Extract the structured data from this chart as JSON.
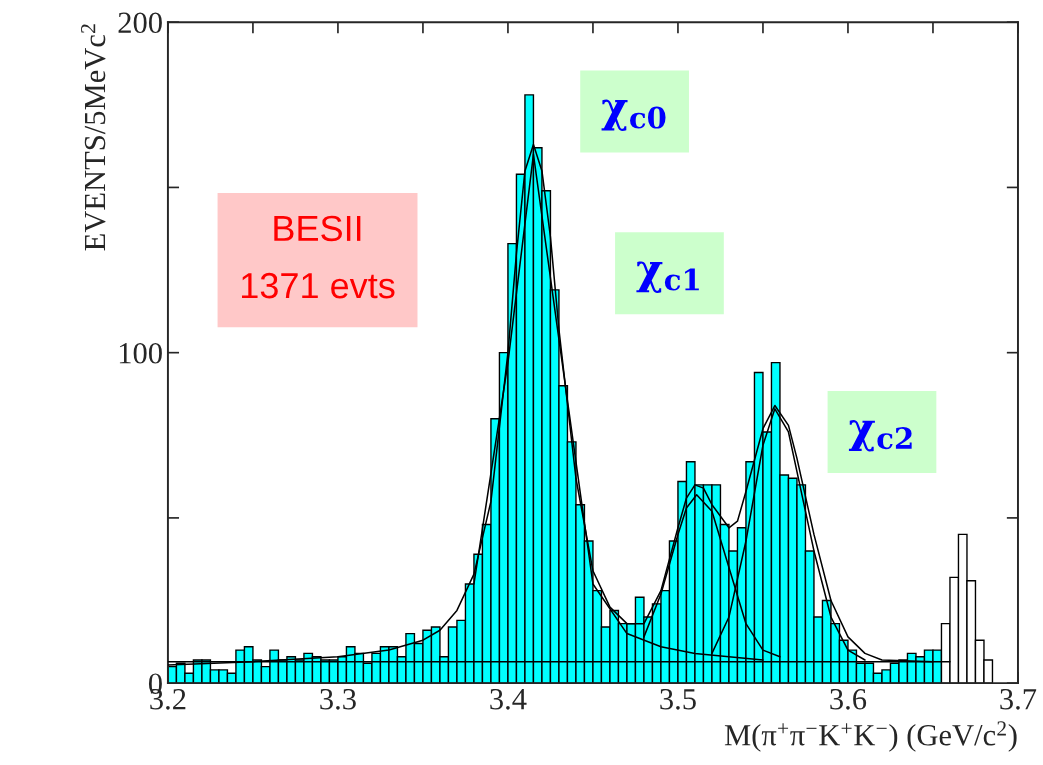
{
  "chart_data": {
    "type": "histogram",
    "xlabel": "M(π$^{+}$π$^{−}$K$^{+}$K$^{−}$) (GeV/c$^{2}$)",
    "ylabel": "EVENTS/5MeVc$^{2}$",
    "xlim": [
      3.2,
      3.7
    ],
    "ylim": [
      0,
      200
    ],
    "xticks": [
      3.2,
      {
        "value": 3.25,
        "label": null
      },
      3.3,
      {
        "value": 3.35,
        "label": null
      },
      3.4,
      {
        "value": 3.45,
        "label": null
      },
      3.5,
      {
        "value": 3.55,
        "label": null
      },
      3.6,
      {
        "value": 3.65,
        "label": null
      },
      3.7
    ],
    "yticks": [
      0,
      {
        "value": 50,
        "label": null
      },
      100,
      {
        "value": 150,
        "label": null
      },
      200
    ],
    "grid": false,
    "annotations": [
      "BESII\n1371 evts",
      "χ$_{c0}$",
      "χ$_{c1}$",
      "χ$_{c2}$"
    ],
    "series": [
      {
        "type": "histogram",
        "bins": [
          3.2,
          3.205,
          3.21,
          3.215,
          3.22,
          3.225,
          3.23,
          3.235,
          3.24,
          3.245,
          3.25,
          3.255,
          3.26,
          3.265,
          3.27,
          3.275,
          3.28,
          3.285,
          3.29,
          3.295,
          3.3,
          3.305,
          3.31,
          3.315,
          3.32,
          3.325,
          3.33,
          3.335,
          3.34,
          3.345,
          3.35,
          3.355,
          3.36,
          3.365,
          3.37,
          3.375,
          3.38,
          3.385,
          3.39,
          3.395,
          3.4,
          3.405,
          3.41,
          3.415,
          3.42,
          3.425,
          3.43,
          3.435,
          3.44,
          3.445,
          3.45,
          3.455,
          3.46,
          3.465,
          3.47,
          3.475,
          3.48,
          3.485,
          3.49,
          3.495,
          3.5,
          3.505,
          3.51,
          3.515,
          3.52,
          3.525,
          3.53,
          3.535,
          3.54,
          3.545,
          3.55,
          3.555,
          3.56,
          3.565,
          3.57,
          3.575,
          3.58,
          3.585,
          3.59,
          3.595,
          3.6,
          3.605,
          3.61,
          3.615,
          3.62,
          3.625,
          3.63,
          3.635,
          3.64,
          3.645,
          3.65,
          3.655,
          3.66,
          3.665,
          3.67,
          3.675,
          3.68,
          3.685,
          3.69,
          3.695,
          3.7
        ],
        "values": [
          5,
          6,
          3,
          7,
          7,
          4,
          4,
          3,
          10,
          11,
          7,
          5,
          10,
          7,
          8,
          7,
          9,
          8,
          7,
          7,
          8,
          11,
          9,
          6,
          9,
          11,
          11,
          8,
          15,
          12,
          16,
          17,
          8,
          17,
          19,
          30,
          39,
          48,
          80,
          100,
          133,
          154,
          178,
          162,
          149,
          119,
          90,
          73,
          54,
          43,
          28,
          17,
          22,
          18,
          18,
          26,
          20,
          24,
          28,
          43,
          61,
          67,
          60,
          60,
          60,
          48,
          40,
          47,
          67,
          94,
          76,
          97,
          63,
          62,
          60,
          40,
          20,
          25,
          18,
          13,
          10,
          6,
          6,
          3,
          4,
          6,
          7,
          9,
          8,
          10,
          10,
          18,
          32,
          45,
          31,
          13,
          7,
          0,
          0,
          0
        ],
        "colors": [
          "#00ffff",
          "#00ffff",
          "#00ffff",
          "#00ffff",
          "#00ffff",
          "#00ffff",
          "#00ffff",
          "#00ffff",
          "#00ffff",
          "#00ffff",
          "#00ffff",
          "#00ffff",
          "#00ffff",
          "#00ffff",
          "#00ffff",
          "#00ffff",
          "#00ffff",
          "#00ffff",
          "#00ffff",
          "#00ffff",
          "#00ffff",
          "#00ffff",
          "#00ffff",
          "#00ffff",
          "#00ffff",
          "#00ffff",
          "#00ffff",
          "#00ffff",
          "#00ffff",
          "#00ffff",
          "#00ffff",
          "#00ffff",
          "#00ffff",
          "#00ffff",
          "#00ffff",
          "#00ffff",
          "#00ffff",
          "#00ffff",
          "#00ffff",
          "#00ffff",
          "#00ffff",
          "#00ffff",
          "#00ffff",
          "#00ffff",
          "#00ffff",
          "#00ffff",
          "#00ffff",
          "#00ffff",
          "#00ffff",
          "#00ffff",
          "#00ffff",
          "#00ffff",
          "#00ffff",
          "#00ffff",
          "#00ffff",
          "#00ffff",
          "#00ffff",
          "#00ffff",
          "#00ffff",
          "#00ffff",
          "#00ffff",
          "#00ffff",
          "#00ffff",
          "#00ffff",
          "#00ffff",
          "#00ffff",
          "#00ffff",
          "#00ffff",
          "#00ffff",
          "#00ffff",
          "#00ffff",
          "#00ffff",
          "#00ffff",
          "#00ffff",
          "#00ffff",
          "#00ffff",
          "#00ffff",
          "#00ffff",
          "#00ffff",
          "#00ffff",
          "#00ffff",
          "#00ffff",
          "#00ffff",
          "#00ffff",
          "#00ffff",
          "#00ffff",
          "#00ffff",
          "#00ffff",
          "#00ffff",
          "#00ffff",
          "#00ffff",
          "#ffffff",
          "#ffffff",
          "#ffffff",
          "#ffffff",
          "#ffffff",
          "#ffffff",
          "#ffffff",
          "#ffffff",
          "#ffffff"
        ]
      },
      {
        "type": "line",
        "color": "#000000",
        "x": [
          3.2,
          3.25,
          3.3,
          3.33,
          3.35,
          3.36,
          3.37,
          3.38,
          3.39,
          3.4,
          3.405,
          3.41,
          3.415,
          3.42,
          3.425,
          3.43,
          3.44,
          3.45,
          3.46,
          3.47,
          3.48,
          3.49,
          3.5,
          3.505,
          3.51,
          3.515,
          3.52,
          3.53,
          3.535,
          3.54,
          3.55,
          3.557,
          3.565,
          3.57,
          3.58,
          3.59,
          3.6,
          3.61,
          3.62,
          3.65
        ],
        "values": [
          5.5,
          6.5,
          8,
          10,
          13,
          16,
          22,
          33,
          55,
          100,
          130,
          155,
          163,
          155,
          135,
          107,
          62,
          34,
          23,
          18,
          18,
          28,
          47,
          56,
          60,
          59,
          54,
          47,
          49,
          58,
          77,
          84,
          78,
          68,
          45,
          25,
          14,
          9,
          7,
          6.5
        ]
      },
      {
        "type": "line",
        "color": "#000000",
        "x": [
          3.38,
          3.4,
          3.415,
          3.43,
          3.45,
          3.47,
          3.49,
          3.51,
          3.53,
          3.55
        ],
        "values": [
          30,
          97,
          160,
          104,
          30,
          15,
          11,
          9,
          8,
          7
        ]
      },
      {
        "type": "line",
        "color": "#000000",
        "x": [
          3.48,
          3.49,
          3.5,
          3.505,
          3.511,
          3.52,
          3.53,
          3.54,
          3.55,
          3.56
        ],
        "values": [
          14,
          27,
          45,
          53,
          57,
          52,
          35,
          18,
          10,
          8
        ]
      },
      {
        "type": "line",
        "color": "#000000",
        "x": [
          3.52,
          3.53,
          3.54,
          3.55,
          3.557,
          3.565,
          3.57,
          3.58,
          3.59,
          3.6,
          3.61
        ],
        "values": [
          9,
          20,
          43,
          72,
          83,
          76,
          64,
          40,
          20,
          10,
          7
        ]
      },
      {
        "type": "line",
        "color": "#000000",
        "x": [
          3.2,
          3.66
        ],
        "values": [
          6.5,
          6.5
        ]
      }
    ]
  }
}
